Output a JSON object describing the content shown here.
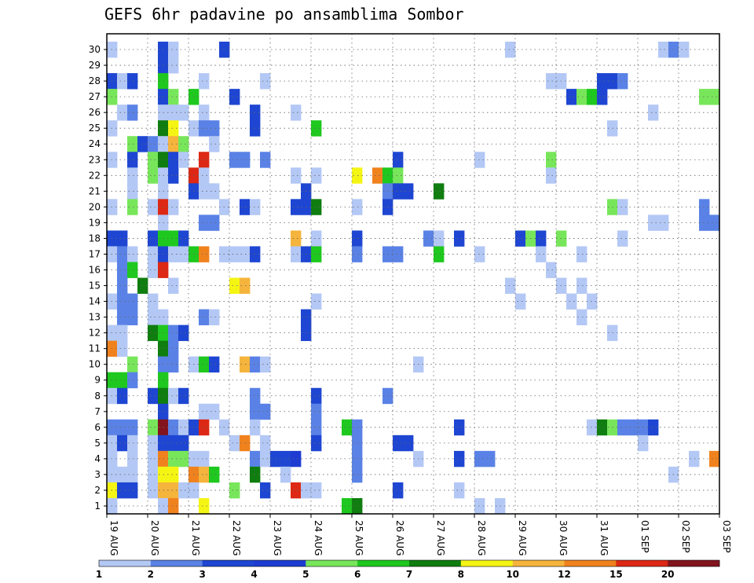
{
  "chart_data": {
    "type": "heatmap",
    "title": "GEFS 6hr padavine po ansamblima Sombor",
    "y_ticks": [
      "1",
      "2",
      "3",
      "4",
      "5",
      "6",
      "7",
      "8",
      "9",
      "10",
      "11",
      "12",
      "13",
      "14",
      "15",
      "16",
      "17",
      "18",
      "19",
      "20",
      "21",
      "22",
      "23",
      "24",
      "25",
      "26",
      "27",
      "28",
      "29",
      "30"
    ],
    "x_ticks": [
      "19 AUG",
      "20 AUG",
      "21 AUG",
      "22 AUG",
      "23 AUG",
      "24 AUG",
      "25 AUG",
      "26 AUG",
      "27 AUG",
      "28 AUG",
      "29 AUG",
      "30 AUG",
      "31 AUG",
      "01 SEP",
      "02 SEP",
      "03 SEP"
    ],
    "ylim": [
      1,
      30
    ],
    "steps_per_day": 4,
    "grid": true,
    "colorbar": {
      "placement": "bottom",
      "labels": [
        "1",
        "2",
        "3",
        "4",
        "5",
        "6",
        "7",
        "8",
        "10",
        "12",
        "15",
        "20"
      ],
      "colors": [
        "#b4c8f5",
        "#5a82e6",
        "#1e46d2",
        "#1e3cd2",
        "#78e65a",
        "#1ec81e",
        "#0f7d0f",
        "#f5f514",
        "#f5b43c",
        "#f0821e",
        "#dc2814",
        "#82141e"
      ]
    },
    "value_classes": [
      "1",
      "2",
      "3",
      "4",
      "5",
      "6",
      "7",
      "8",
      "10",
      "12",
      "15",
      "20"
    ],
    "cells": [
      [
        1,
        30,
        0
      ],
      [
        1,
        28,
        2
      ],
      [
        1,
        27,
        4
      ],
      [
        1,
        25,
        0
      ],
      [
        1,
        23,
        0
      ],
      [
        1,
        20,
        0
      ],
      [
        1,
        18,
        2
      ],
      [
        1,
        17,
        0
      ],
      [
        1,
        14,
        0
      ],
      [
        1,
        12,
        0
      ],
      [
        1,
        11,
        9
      ],
      [
        1,
        9,
        5
      ],
      [
        1,
        8,
        0
      ],
      [
        1,
        6,
        1
      ],
      [
        1,
        5,
        0
      ],
      [
        1,
        4,
        0
      ],
      [
        1,
        3,
        0
      ],
      [
        1,
        2,
        7
      ],
      [
        1,
        1,
        0
      ],
      [
        2,
        28,
        0
      ],
      [
        2,
        26,
        0
      ],
      [
        2,
        18,
        2
      ],
      [
        2,
        17,
        1
      ],
      [
        2,
        16,
        1
      ],
      [
        2,
        15,
        1
      ],
      [
        2,
        14,
        1
      ],
      [
        2,
        13,
        1
      ],
      [
        2,
        12,
        0
      ],
      [
        2,
        11,
        0
      ],
      [
        2,
        9,
        5
      ],
      [
        2,
        8,
        2
      ],
      [
        2,
        6,
        1
      ],
      [
        2,
        5,
        2
      ],
      [
        2,
        3,
        0
      ],
      [
        2,
        2,
        2
      ],
      [
        3,
        28,
        2
      ],
      [
        3,
        26,
        1
      ],
      [
        3,
        24,
        4
      ],
      [
        3,
        23,
        2
      ],
      [
        3,
        22,
        0
      ],
      [
        3,
        21,
        0
      ],
      [
        3,
        20,
        4
      ],
      [
        3,
        17,
        0
      ],
      [
        3,
        16,
        5
      ],
      [
        3,
        14,
        1
      ],
      [
        3,
        13,
        1
      ],
      [
        3,
        10,
        4
      ],
      [
        3,
        9,
        1
      ],
      [
        3,
        6,
        1
      ],
      [
        3,
        5,
        0
      ],
      [
        3,
        4,
        0
      ],
      [
        3,
        3,
        0
      ],
      [
        3,
        2,
        2
      ],
      [
        4,
        24,
        2
      ],
      [
        4,
        15,
        6
      ],
      [
        5,
        24,
        1
      ],
      [
        5,
        23,
        4
      ],
      [
        5,
        22,
        4
      ],
      [
        5,
        20,
        0
      ],
      [
        5,
        18,
        2
      ],
      [
        5,
        17,
        0
      ],
      [
        5,
        16,
        0
      ],
      [
        5,
        14,
        0
      ],
      [
        5,
        13,
        0
      ],
      [
        5,
        12,
        6
      ],
      [
        5,
        8,
        2
      ],
      [
        5,
        6,
        4
      ],
      [
        5,
        5,
        0
      ],
      [
        5,
        4,
        0
      ],
      [
        5,
        3,
        0
      ],
      [
        5,
        2,
        0
      ],
      [
        6,
        30,
        2
      ],
      [
        6,
        29,
        2
      ],
      [
        6,
        28,
        5
      ],
      [
        6,
        27,
        2
      ],
      [
        6,
        26,
        0
      ],
      [
        6,
        25,
        6
      ],
      [
        6,
        24,
        0
      ],
      [
        6,
        23,
        6
      ],
      [
        6,
        22,
        0
      ],
      [
        6,
        21,
        0
      ],
      [
        6,
        20,
        10
      ],
      [
        6,
        19,
        0
      ],
      [
        6,
        18,
        5
      ],
      [
        6,
        17,
        2
      ],
      [
        6,
        16,
        10
      ],
      [
        6,
        13,
        0
      ],
      [
        6,
        12,
        5
      ],
      [
        6,
        11,
        6
      ],
      [
        6,
        10,
        1
      ],
      [
        6,
        9,
        5
      ],
      [
        6,
        8,
        6
      ],
      [
        6,
        7,
        2
      ],
      [
        6,
        6,
        11
      ],
      [
        6,
        5,
        2
      ],
      [
        6,
        4,
        9
      ],
      [
        6,
        3,
        7
      ],
      [
        6,
        2,
        8
      ],
      [
        6,
        1,
        0
      ],
      [
        7,
        30,
        0
      ],
      [
        7,
        29,
        0
      ],
      [
        7,
        27,
        4
      ],
      [
        7,
        26,
        0
      ],
      [
        7,
        25,
        7
      ],
      [
        7,
        24,
        8
      ],
      [
        7,
        23,
        2
      ],
      [
        7,
        22,
        2
      ],
      [
        7,
        20,
        0
      ],
      [
        7,
        18,
        5
      ],
      [
        7,
        17,
        0
      ],
      [
        7,
        15,
        0
      ],
      [
        7,
        12,
        1
      ],
      [
        7,
        11,
        1
      ],
      [
        7,
        10,
        1
      ],
      [
        7,
        8,
        0
      ],
      [
        7,
        6,
        1
      ],
      [
        7,
        5,
        2
      ],
      [
        7,
        4,
        4
      ],
      [
        7,
        3,
        7
      ],
      [
        7,
        2,
        8
      ],
      [
        7,
        1,
        9
      ],
      [
        8,
        26,
        0
      ],
      [
        8,
        24,
        4
      ],
      [
        8,
        23,
        0
      ],
      [
        8,
        18,
        2
      ],
      [
        8,
        17,
        0
      ],
      [
        8,
        12,
        2
      ],
      [
        8,
        8,
        2
      ],
      [
        8,
        6,
        0
      ],
      [
        8,
        5,
        2
      ],
      [
        8,
        4,
        4
      ],
      [
        8,
        2,
        0
      ],
      [
        9,
        27,
        5
      ],
      [
        9,
        25,
        0
      ],
      [
        9,
        22,
        10
      ],
      [
        9,
        21,
        2
      ],
      [
        9,
        17,
        5
      ],
      [
        9,
        10,
        0
      ],
      [
        9,
        6,
        2
      ],
      [
        9,
        4,
        0
      ],
      [
        9,
        3,
        9
      ],
      [
        9,
        2,
        0
      ],
      [
        10,
        28,
        0
      ],
      [
        10,
        26,
        0
      ],
      [
        10,
        25,
        1
      ],
      [
        10,
        23,
        10
      ],
      [
        10,
        22,
        0
      ],
      [
        10,
        21,
        0
      ],
      [
        10,
        19,
        1
      ],
      [
        10,
        17,
        9
      ],
      [
        10,
        13,
        1
      ],
      [
        10,
        10,
        5
      ],
      [
        10,
        7,
        0
      ],
      [
        10,
        6,
        10
      ],
      [
        10,
        4,
        0
      ],
      [
        10,
        3,
        8
      ],
      [
        10,
        1,
        7
      ],
      [
        11,
        25,
        1
      ],
      [
        11,
        24,
        0
      ],
      [
        11,
        21,
        0
      ],
      [
        11,
        19,
        1
      ],
      [
        11,
        13,
        0
      ],
      [
        11,
        10,
        2
      ],
      [
        11,
        7,
        0
      ],
      [
        11,
        3,
        5
      ],
      [
        12,
        30,
        2
      ],
      [
        12,
        20,
        0
      ],
      [
        12,
        17,
        0
      ],
      [
        12,
        6,
        0
      ],
      [
        13,
        27,
        2
      ],
      [
        13,
        23,
        1
      ],
      [
        13,
        17,
        0
      ],
      [
        13,
        15,
        7
      ],
      [
        13,
        5,
        0
      ],
      [
        13,
        2,
        4
      ],
      [
        14,
        23,
        1
      ],
      [
        14,
        20,
        2
      ],
      [
        14,
        17,
        0
      ],
      [
        14,
        15,
        8
      ],
      [
        14,
        10,
        8
      ],
      [
        14,
        5,
        9
      ],
      [
        15,
        26,
        2
      ],
      [
        15,
        25,
        2
      ],
      [
        15,
        20,
        0
      ],
      [
        15,
        17,
        2
      ],
      [
        15,
        10,
        1
      ],
      [
        15,
        8,
        1
      ],
      [
        15,
        7,
        1
      ],
      [
        15,
        6,
        0
      ],
      [
        15,
        4,
        1
      ],
      [
        15,
        3,
        6
      ],
      [
        16,
        28,
        0
      ],
      [
        16,
        23,
        1
      ],
      [
        16,
        10,
        0
      ],
      [
        16,
        7,
        1
      ],
      [
        16,
        5,
        0
      ],
      [
        16,
        4,
        0
      ],
      [
        16,
        2,
        2
      ],
      [
        17,
        4,
        2
      ],
      [
        18,
        4,
        2
      ],
      [
        18,
        3,
        0
      ],
      [
        19,
        26,
        0
      ],
      [
        19,
        22,
        0
      ],
      [
        19,
        20,
        2
      ],
      [
        19,
        18,
        8
      ],
      [
        19,
        17,
        0
      ],
      [
        19,
        4,
        3
      ],
      [
        19,
        2,
        10
      ],
      [
        20,
        21,
        2
      ],
      [
        20,
        20,
        2
      ],
      [
        20,
        17,
        2
      ],
      [
        20,
        13,
        2
      ],
      [
        20,
        12,
        2
      ],
      [
        20,
        2,
        0
      ],
      [
        21,
        25,
        5
      ],
      [
        21,
        22,
        0
      ],
      [
        21,
        20,
        6
      ],
      [
        21,
        18,
        0
      ],
      [
        21,
        17,
        5
      ],
      [
        21,
        14,
        0
      ],
      [
        21,
        8,
        2
      ],
      [
        21,
        7,
        1
      ],
      [
        21,
        6,
        1
      ],
      [
        21,
        5,
        2
      ],
      [
        21,
        2,
        0
      ],
      [
        24,
        6,
        5
      ],
      [
        24,
        1,
        5
      ],
      [
        25,
        22,
        7
      ],
      [
        25,
        20,
        0
      ],
      [
        25,
        18,
        2
      ],
      [
        25,
        17,
        1
      ],
      [
        25,
        6,
        1
      ],
      [
        25,
        5,
        1
      ],
      [
        25,
        4,
        1
      ],
      [
        25,
        3,
        1
      ],
      [
        25,
        1,
        6
      ],
      [
        27,
        22,
        9
      ],
      [
        28,
        22,
        5
      ],
      [
        28,
        21,
        1
      ],
      [
        28,
        20,
        2
      ],
      [
        28,
        17,
        1
      ],
      [
        28,
        8,
        1
      ],
      [
        29,
        23,
        2
      ],
      [
        29,
        22,
        4
      ],
      [
        29,
        21,
        2
      ],
      [
        29,
        17,
        1
      ],
      [
        29,
        5,
        2
      ],
      [
        29,
        2,
        2
      ],
      [
        30,
        21,
        2
      ],
      [
        30,
        5,
        2
      ],
      [
        31,
        10,
        0
      ],
      [
        31,
        4,
        0
      ],
      [
        32,
        18,
        1
      ],
      [
        33,
        21,
        6
      ],
      [
        33,
        18,
        0
      ],
      [
        33,
        17,
        5
      ],
      [
        35,
        18,
        2
      ],
      [
        35,
        6,
        2
      ],
      [
        35,
        4,
        2
      ],
      [
        35,
        2,
        0
      ],
      [
        37,
        23,
        0
      ],
      [
        37,
        17,
        0
      ],
      [
        37,
        4,
        1
      ],
      [
        37,
        1,
        0
      ],
      [
        38,
        4,
        1
      ],
      [
        39,
        1,
        0
      ],
      [
        40,
        30,
        0
      ],
      [
        40,
        15,
        0
      ],
      [
        41,
        18,
        2
      ],
      [
        41,
        14,
        0
      ],
      [
        42,
        18,
        4
      ],
      [
        43,
        18,
        2
      ],
      [
        43,
        17,
        0
      ],
      [
        44,
        28,
        0
      ],
      [
        44,
        23,
        4
      ],
      [
        44,
        22,
        0
      ],
      [
        44,
        16,
        0
      ],
      [
        45,
        28,
        0
      ],
      [
        45,
        18,
        4
      ],
      [
        45,
        15,
        0
      ],
      [
        46,
        27,
        2
      ],
      [
        46,
        14,
        0
      ],
      [
        47,
        27,
        4
      ],
      [
        47,
        17,
        0
      ],
      [
        47,
        15,
        0
      ],
      [
        47,
        13,
        0
      ],
      [
        48,
        27,
        5
      ],
      [
        48,
        14,
        0
      ],
      [
        48,
        6,
        0
      ],
      [
        49,
        28,
        2
      ],
      [
        49,
        27,
        2
      ],
      [
        49,
        6,
        6
      ],
      [
        50,
        28,
        2
      ],
      [
        50,
        25,
        0
      ],
      [
        50,
        20,
        4
      ],
      [
        50,
        12,
        0
      ],
      [
        50,
        6,
        4
      ],
      [
        51,
        28,
        1
      ],
      [
        51,
        20,
        0
      ],
      [
        51,
        18,
        0
      ],
      [
        51,
        6,
        1
      ],
      [
        52,
        6,
        1
      ],
      [
        53,
        6,
        1
      ],
      [
        53,
        5,
        0
      ],
      [
        54,
        26,
        0
      ],
      [
        54,
        19,
        0
      ],
      [
        54,
        6,
        2
      ],
      [
        55,
        30,
        0
      ],
      [
        55,
        19,
        0
      ],
      [
        56,
        30,
        1
      ],
      [
        56,
        3,
        0
      ],
      [
        57,
        30,
        0
      ],
      [
        58,
        4,
        0
      ],
      [
        59,
        27,
        4
      ],
      [
        59,
        20,
        1
      ],
      [
        59,
        19,
        1
      ],
      [
        60,
        27,
        4
      ],
      [
        60,
        19,
        1
      ],
      [
        60,
        4,
        9
      ],
      [
        61,
        4,
        0
      ],
      [
        62,
        15,
        0
      ],
      [
        64,
        22,
        1
      ],
      [
        64,
        20,
        0
      ],
      [
        64,
        19,
        1
      ],
      [
        64,
        18,
        0
      ],
      [
        64,
        6,
        0
      ],
      [
        64,
        2,
        0
      ],
      [
        65,
        20,
        0
      ],
      [
        65,
        18,
        0
      ],
      [
        66,
        8,
        0
      ],
      [
        67,
        2,
        0
      ],
      [
        68,
        2,
        4
      ],
      [
        69,
        21,
        4
      ],
      [
        69,
        20,
        4
      ],
      [
        69,
        19,
        2
      ],
      [
        69,
        9,
        0
      ],
      [
        69,
        8,
        9
      ]
    ]
  }
}
